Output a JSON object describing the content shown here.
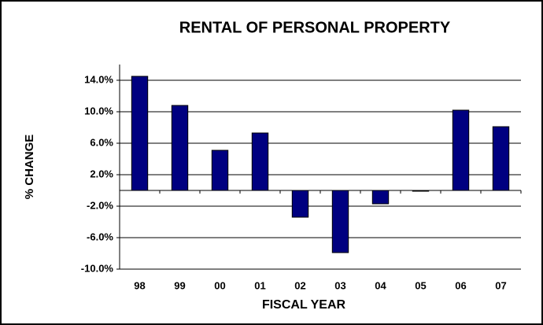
{
  "chart_data": {
    "type": "bar",
    "title": "RENTAL OF PERSONAL PROPERTY",
    "x_label": "FISCAL YEAR",
    "y_label": "% CHANGE",
    "categories": [
      "98",
      "99",
      "00",
      "01",
      "02",
      "03",
      "04",
      "05",
      "06",
      "07"
    ],
    "values": [
      14.5,
      10.8,
      5.1,
      7.3,
      -3.4,
      -7.9,
      -1.7,
      -0.1,
      10.2,
      8.1
    ],
    "color": "#000080",
    "ylim": [
      -10,
      16
    ],
    "yticks": [
      {
        "value": 14,
        "label": "14.0%"
      },
      {
        "value": 10,
        "label": "10.0%"
      },
      {
        "value": 6,
        "label": "6.0%"
      },
      {
        "value": 2,
        "label": "2.0%"
      },
      {
        "value": -2,
        "label": "-2.0%"
      },
      {
        "value": -6,
        "label": "-6.0%"
      },
      {
        "value": -10,
        "label": "-10.0%"
      }
    ],
    "grid": true
  }
}
